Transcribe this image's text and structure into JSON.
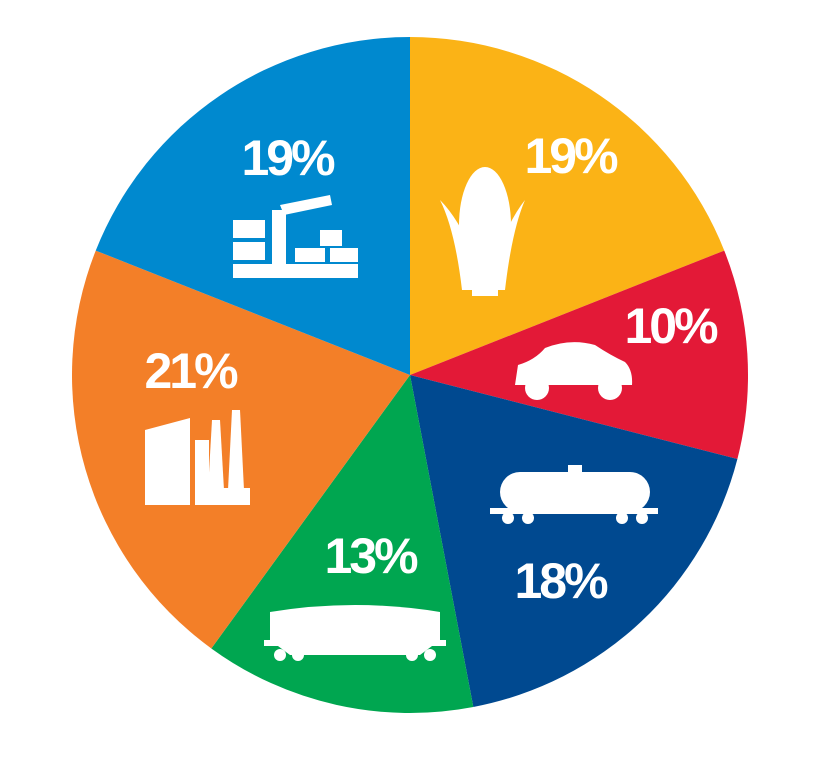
{
  "chart_data": {
    "type": "pie",
    "values": [
      19,
      10,
      18,
      13,
      21,
      19
    ],
    "value_labels": [
      "19%",
      "10%",
      "18%",
      "13%",
      "21%",
      "19%"
    ],
    "colors": [
      "#fbb316",
      "#e31937",
      "#004990",
      "#00a650",
      "#f37f28",
      "#0089cf"
    ]
  }
}
